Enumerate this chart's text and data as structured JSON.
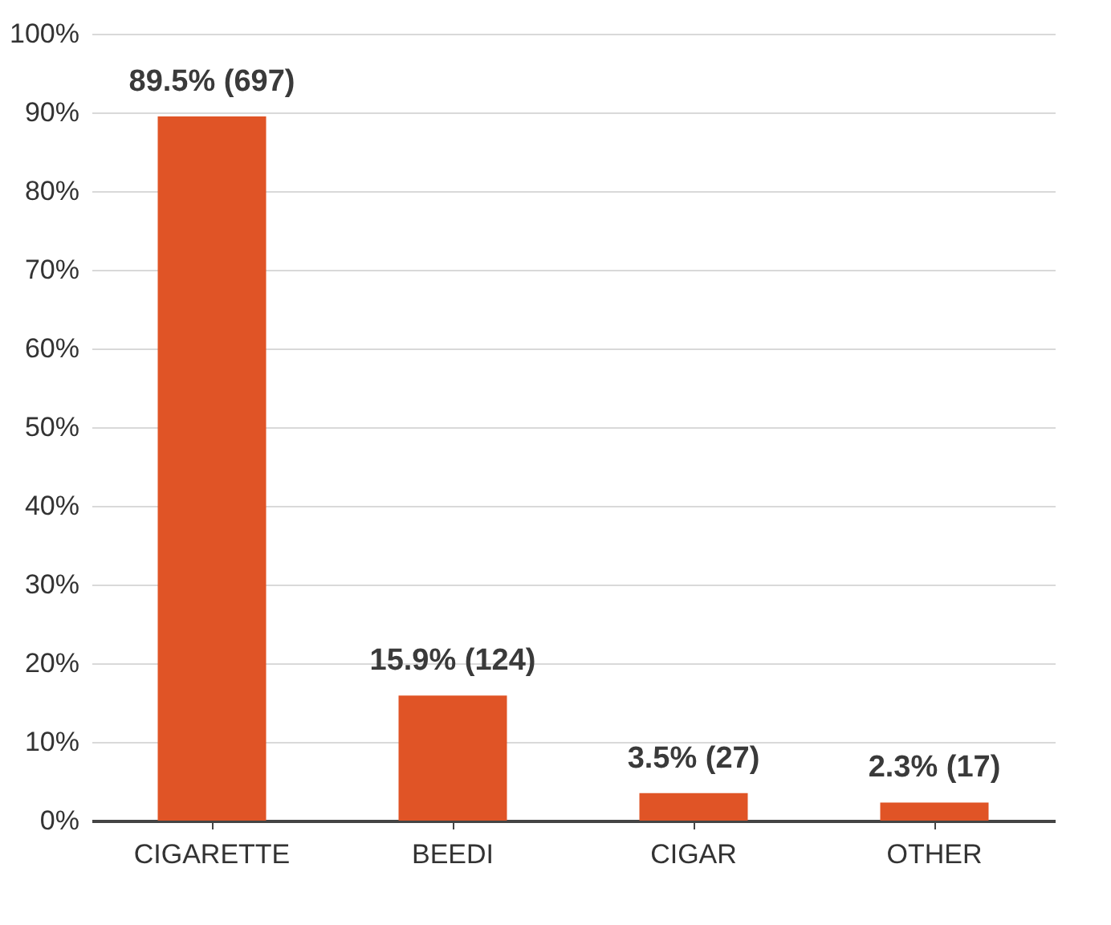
{
  "chart_data": {
    "type": "bar",
    "categories": [
      "CIGARETTE",
      "BEEDI",
      "CIGAR",
      "OTHER"
    ],
    "values": [
      89.5,
      15.9,
      3.5,
      2.3
    ],
    "value_labels": [
      "89.5% (697)",
      "15.9% (124)",
      "3.5% (27)",
      "2.3% (17)"
    ],
    "color": "#e05426",
    "ylim": [
      0,
      100
    ],
    "yticks": [
      {
        "value": 0,
        "label": "0%"
      },
      {
        "value": 10,
        "label": "10%"
      },
      {
        "value": 20,
        "label": "20%"
      },
      {
        "value": 30,
        "label": "30%"
      },
      {
        "value": 40,
        "label": "40%"
      },
      {
        "value": 50,
        "label": "50%"
      },
      {
        "value": 60,
        "label": "60%"
      },
      {
        "value": 70,
        "label": "70%"
      },
      {
        "value": 80,
        "label": "80%"
      },
      {
        "value": 90,
        "label": "90%"
      },
      {
        "value": 100,
        "label": "100%"
      }
    ],
    "grid": "y"
  }
}
